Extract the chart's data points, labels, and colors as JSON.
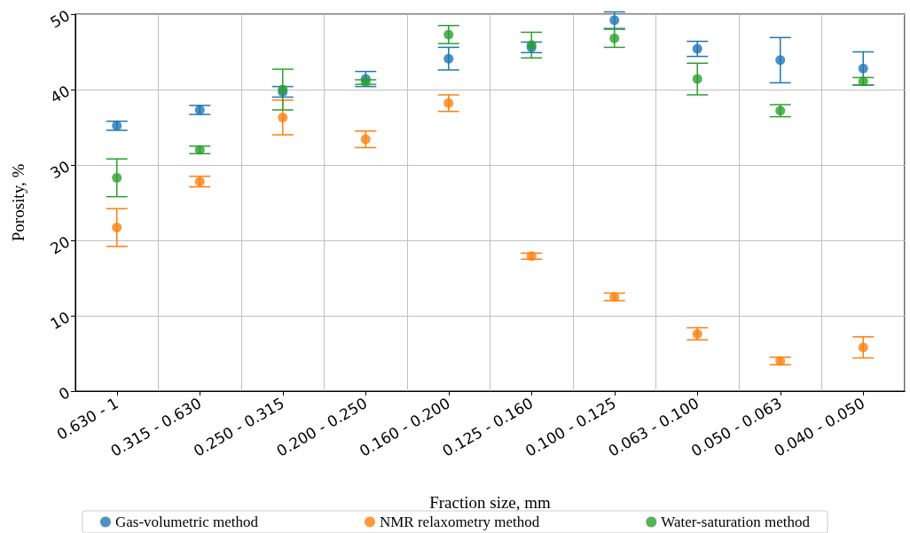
{
  "chart_data": {
    "type": "scatter",
    "xlabel": "Fraction size, mm",
    "ylabel": "Porosity, %",
    "categories": [
      "0.630 - 1",
      "0.315 - 0.630",
      "0.250 - 0.315",
      "0.200 - 0.250",
      "0.160 - 0.200",
      "0.125 - 0.160",
      "0.100 - 0.125",
      "0.063 - 0.100",
      "0.050 - 0.063",
      "0.040 - 0.050"
    ],
    "series": [
      {
        "name": "Gas-volumetric method",
        "color": "#1f77b4",
        "values": [
          35.2,
          37.3,
          39.7,
          41.4,
          44.1,
          45.6,
          49.2,
          45.4,
          43.9,
          42.8
        ],
        "errors": [
          0.6,
          0.6,
          0.7,
          1.0,
          1.5,
          0.7,
          1.1,
          1.0,
          3.0,
          2.2
        ]
      },
      {
        "name": "NMR relaxometry method",
        "color": "#ff7f0e",
        "values": [
          21.7,
          27.8,
          36.3,
          33.4,
          38.2,
          17.9,
          12.5,
          7.6,
          4.0,
          5.8
        ],
        "errors": [
          2.5,
          0.7,
          2.3,
          1.1,
          1.1,
          0.4,
          0.5,
          0.8,
          0.5,
          1.4
        ]
      },
      {
        "name": "Water-saturation method",
        "color": "#2ca02c",
        "values": [
          28.3,
          32.0,
          40.0,
          41.0,
          47.3,
          45.9,
          46.8,
          41.4,
          37.2,
          41.1
        ],
        "errors": [
          2.5,
          0.5,
          2.7,
          0.3,
          1.2,
          1.7,
          1.2,
          2.1,
          0.8,
          0.5
        ]
      }
    ],
    "ylim": [
      0,
      50
    ],
    "yticks": [
      0,
      10,
      20,
      30,
      40,
      50
    ],
    "grid": true,
    "legend": "bottom",
    "marker": "circle"
  }
}
